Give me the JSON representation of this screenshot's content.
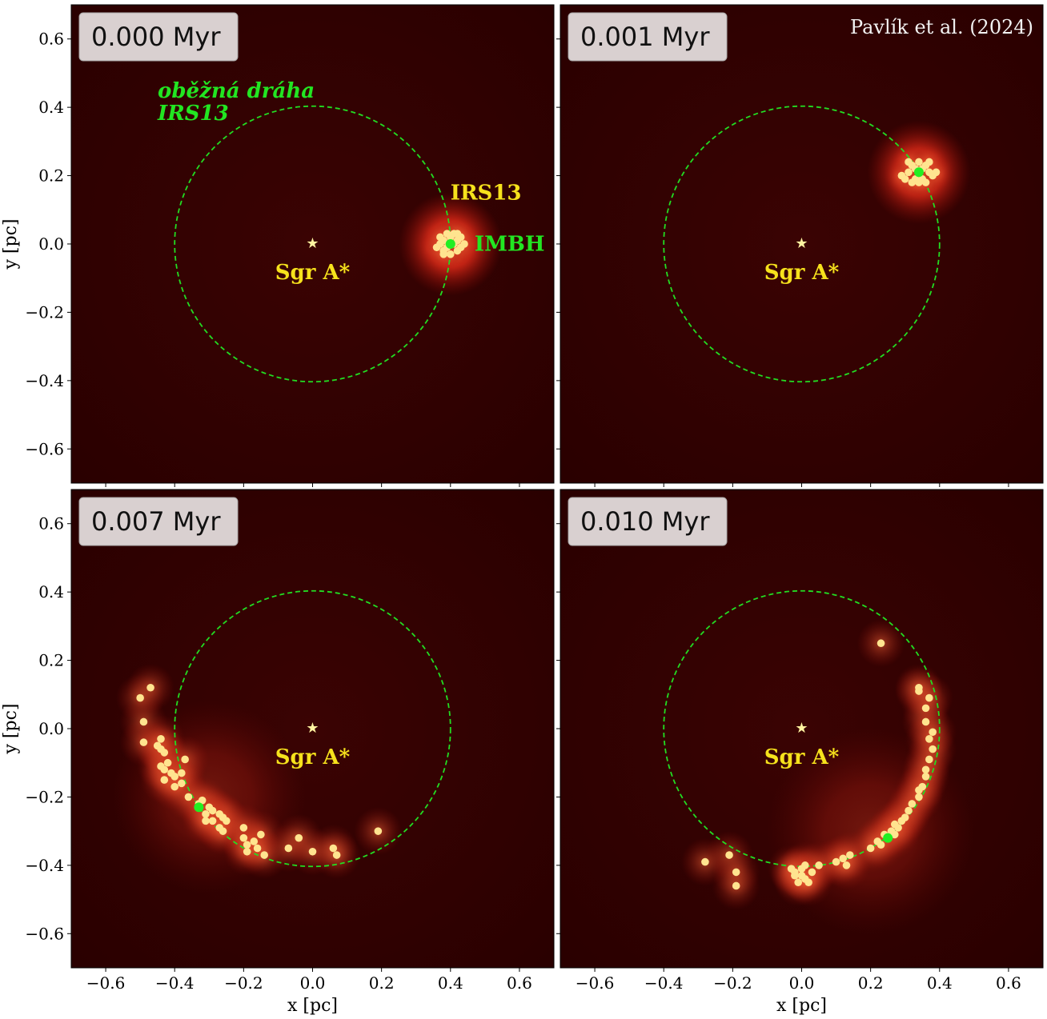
{
  "chart_data": {
    "type": "scatter",
    "layout": "2x2 grid",
    "xlabel": "x [pc]",
    "ylabel": "y [pc]",
    "xlim": [
      -0.7,
      0.7
    ],
    "ylim": [
      -0.7,
      0.7
    ],
    "xticks": [
      -0.6,
      -0.4,
      -0.2,
      0.0,
      0.2,
      0.4,
      0.6
    ],
    "xtick_labels": [
      "−0.6",
      "−0.4",
      "−0.2",
      "0.0",
      "0.2",
      "0.4",
      "0.6"
    ],
    "yticks": [
      0.6,
      0.4,
      0.2,
      0.0,
      -0.2,
      -0.4,
      -0.6
    ],
    "ytick_labels": [
      "0.6",
      "0.4",
      "0.2",
      "0.0",
      "−0.2",
      "−0.4",
      "−0.6"
    ],
    "credit": "Pavlík et al. (2024)",
    "orbit": {
      "center": [
        0.0,
        0.0
      ],
      "radius": 0.4,
      "label_line1": "oběžná dráha",
      "label_line2": "IRS13"
    },
    "center_object": {
      "label": "Sgr A*",
      "x": 0.0,
      "y": 0.0
    },
    "cluster_label": "IRS13",
    "imbh_label": "IMBH",
    "colors": {
      "background": "#2a0000",
      "stars": "#ffe48f",
      "orbit": "#22dd22",
      "imbh": "#22ee22",
      "label_yellow": "#f6e21c",
      "time_box": "#d9d0d0"
    },
    "panels": [
      {
        "time": "0.000 Myr",
        "imbh": [
          0.4,
          0.0
        ],
        "glow": {
          "center": [
            0.4,
            0.0
          ],
          "radius": 0.15,
          "intensity": 1.0
        },
        "stars": [
          [
            0.39,
            0.03
          ],
          [
            0.41,
            0.03
          ],
          [
            0.38,
            0.01
          ],
          [
            0.42,
            0.01
          ],
          [
            0.37,
            0.0
          ],
          [
            0.43,
            -0.01
          ],
          [
            0.38,
            -0.02
          ],
          [
            0.4,
            -0.03
          ],
          [
            0.42,
            -0.02
          ],
          [
            0.39,
            -0.01
          ],
          [
            0.41,
            0.0
          ],
          [
            0.36,
            -0.01
          ],
          [
            0.44,
            0.0
          ],
          [
            0.4,
            0.02
          ],
          [
            0.38,
            -0.03
          ],
          [
            0.42,
            0.03
          ],
          [
            0.37,
            0.02
          ],
          [
            0.43,
            0.02
          ]
        ]
      },
      {
        "time": "0.001 Myr",
        "imbh": [
          0.34,
          0.21
        ],
        "glow": {
          "center": [
            0.34,
            0.21
          ],
          "radius": 0.15,
          "intensity": 0.95
        },
        "stars": [
          [
            0.32,
            0.23
          ],
          [
            0.34,
            0.24
          ],
          [
            0.36,
            0.23
          ],
          [
            0.31,
            0.21
          ],
          [
            0.37,
            0.21
          ],
          [
            0.3,
            0.19
          ],
          [
            0.38,
            0.2
          ],
          [
            0.33,
            0.19
          ],
          [
            0.35,
            0.19
          ],
          [
            0.32,
            0.18
          ],
          [
            0.36,
            0.18
          ],
          [
            0.29,
            0.2
          ],
          [
            0.39,
            0.21
          ],
          [
            0.33,
            0.22
          ],
          [
            0.35,
            0.22
          ],
          [
            0.34,
            0.18
          ],
          [
            0.31,
            0.24
          ],
          [
            0.37,
            0.24
          ]
        ]
      },
      {
        "time": "0.007 Myr",
        "imbh": [
          -0.33,
          -0.23
        ],
        "glow": {
          "center": [
            -0.3,
            -0.2
          ],
          "radius": 0.28,
          "intensity": 0.3
        },
        "stars": [
          [
            -0.47,
            0.12
          ],
          [
            -0.5,
            0.09
          ],
          [
            -0.49,
            0.02
          ],
          [
            -0.49,
            -0.04
          ],
          [
            -0.44,
            -0.03
          ],
          [
            -0.45,
            -0.05
          ],
          [
            -0.44,
            -0.06
          ],
          [
            -0.43,
            -0.07
          ],
          [
            -0.37,
            -0.09
          ],
          [
            -0.44,
            -0.11
          ],
          [
            -0.42,
            -0.1
          ],
          [
            -0.43,
            -0.12
          ],
          [
            -0.41,
            -0.13
          ],
          [
            -0.4,
            -0.14
          ],
          [
            -0.38,
            -0.13
          ],
          [
            -0.43,
            -0.15
          ],
          [
            -0.38,
            -0.16
          ],
          [
            -0.4,
            -0.17
          ],
          [
            -0.36,
            -0.2
          ],
          [
            -0.32,
            -0.21
          ],
          [
            -0.33,
            -0.22
          ],
          [
            -0.3,
            -0.23
          ],
          [
            -0.29,
            -0.24
          ],
          [
            -0.31,
            -0.25
          ],
          [
            -0.27,
            -0.25
          ],
          [
            -0.26,
            -0.26
          ],
          [
            -0.29,
            -0.27
          ],
          [
            -0.25,
            -0.27
          ],
          [
            -0.27,
            -0.29
          ],
          [
            -0.31,
            -0.27
          ],
          [
            -0.26,
            -0.3
          ],
          [
            -0.2,
            -0.29
          ],
          [
            -0.2,
            -0.32
          ],
          [
            -0.15,
            -0.31
          ],
          [
            -0.17,
            -0.33
          ],
          [
            -0.19,
            -0.34
          ],
          [
            -0.16,
            -0.35
          ],
          [
            -0.19,
            -0.36
          ],
          [
            -0.14,
            -0.37
          ],
          [
            -0.07,
            -0.35
          ],
          [
            -0.04,
            -0.32
          ],
          [
            0.0,
            -0.36
          ],
          [
            0.06,
            -0.35
          ],
          [
            0.07,
            -0.37
          ],
          [
            0.19,
            -0.3
          ]
        ]
      },
      {
        "time": "0.010 Myr",
        "imbh": [
          0.25,
          -0.32
        ],
        "glow": {
          "center": [
            0.2,
            -0.3
          ],
          "radius": 0.3,
          "intensity": 0.3
        },
        "stars": [
          [
            0.23,
            0.25
          ],
          [
            0.34,
            0.12
          ],
          [
            0.34,
            0.11
          ],
          [
            0.37,
            0.09
          ],
          [
            0.36,
            0.06
          ],
          [
            0.36,
            0.02
          ],
          [
            0.38,
            -0.01
          ],
          [
            0.37,
            -0.03
          ],
          [
            0.38,
            -0.06
          ],
          [
            0.37,
            -0.09
          ],
          [
            0.36,
            -0.12
          ],
          [
            0.36,
            -0.14
          ],
          [
            0.35,
            -0.17
          ],
          [
            0.34,
            -0.18
          ],
          [
            0.34,
            -0.2
          ],
          [
            0.32,
            -0.22
          ],
          [
            0.31,
            -0.24
          ],
          [
            0.3,
            -0.26
          ],
          [
            0.29,
            -0.27
          ],
          [
            0.27,
            -0.28
          ],
          [
            0.28,
            -0.29
          ],
          [
            0.26,
            -0.3
          ],
          [
            0.27,
            -0.31
          ],
          [
            0.24,
            -0.31
          ],
          [
            0.22,
            -0.33
          ],
          [
            0.23,
            -0.34
          ],
          [
            0.2,
            -0.35
          ],
          [
            0.14,
            -0.37
          ],
          [
            0.12,
            -0.38
          ],
          [
            0.1,
            -0.39
          ],
          [
            0.13,
            -0.4
          ],
          [
            0.05,
            -0.4
          ],
          [
            0.01,
            -0.4
          ],
          [
            0.0,
            -0.41
          ],
          [
            -0.02,
            -0.42
          ],
          [
            0.03,
            -0.42
          ],
          [
            0.01,
            -0.44
          ],
          [
            -0.01,
            -0.45
          ],
          [
            -0.02,
            -0.43
          ],
          [
            -0.03,
            -0.41
          ],
          [
            0.0,
            -0.43
          ],
          [
            -0.28,
            -0.39
          ],
          [
            -0.21,
            -0.37
          ],
          [
            -0.19,
            -0.42
          ],
          [
            -0.19,
            -0.46
          ],
          [
            0.02,
            -0.45
          ]
        ]
      }
    ]
  }
}
